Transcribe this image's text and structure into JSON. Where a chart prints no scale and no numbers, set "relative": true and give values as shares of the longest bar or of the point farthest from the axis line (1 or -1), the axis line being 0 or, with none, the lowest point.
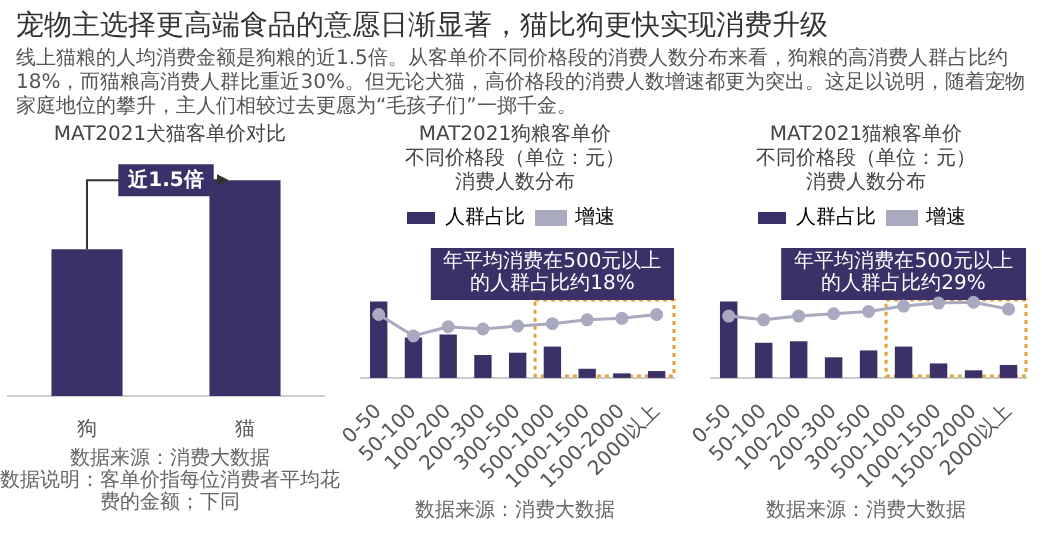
{
  "chart_data": [
    {
      "type": "other",
      "title": "宠物主选择更高端食品的意愿日渐显著，猫比狗更快实现消费升级",
      "subtitle": "线上猫粮的人均消费金额是狗粮的近1.5倍。从客单价不同价格段的消费人数分布来看，狗粮的高消费人群占比约18%，而猫粮高消费人群比重近30%。但无论犬猫，高价格段的消费人数增速都更为突出。这足以说明，随着宠物家庭地位的攀升，主人们相较过去更愿为“毛孩子们”一掷千金。"
    },
    {
      "type": "bar",
      "title": "MAT2021犬猫客单价对比",
      "categories": [
        "狗",
        "猫"
      ],
      "values": [
        0.68,
        1
      ],
      "color": "#3b3168",
      "relative": true,
      "annotations": [
        {
          "text": "近1.5倍",
          "x": "猫",
          "y": 1
        },
        "数据来源：消费大数据",
        "数据说明：客单价指每位消费者平均花费的金额；下同"
      ]
    },
    {
      "type": "bar",
      "title": "MAT2021狗粮客单价",
      "subtitle": "不同价格段（单位：元）消费人数分布",
      "legend": "top",
      "relative": true,
      "categories": [
        "0-50",
        "50-100",
        "100-200",
        "200-300",
        "300-500",
        "500-1000",
        "1000-1500",
        "1500-2000",
        "2000以上"
      ],
      "series": [
        {
          "name": "人群占比",
          "type": "bar",
          "color": "#3b3168",
          "values": [
            1,
            0.53,
            0.57,
            0.3,
            0.33,
            0.41,
            0.12,
            0.06,
            0.09
          ]
        },
        {
          "name": "增速",
          "type": "line",
          "color": "#a9a9c0",
          "marker": "circle",
          "values": [
            0.83,
            0.55,
            0.67,
            0.64,
            0.68,
            0.71,
            0.76,
            0.78,
            0.83
          ]
        }
      ],
      "annotations": [
        "年平均消费在500元以上的人群占比约18%",
        "数据来源：消费大数据"
      ]
    },
    {
      "type": "bar",
      "title": "MAT2021猫粮客单价",
      "subtitle": "不同价格段（单位：元）消费人数分布",
      "legend": "top",
      "relative": true,
      "categories": [
        "0-50",
        "50-100",
        "100-200",
        "200-300",
        "300-500",
        "500-1000",
        "1000-1500",
        "1500-2000",
        "2000以上"
      ],
      "series": [
        {
          "name": "人群占比",
          "type": "bar",
          "color": "#3b3168",
          "values": [
            1,
            0.46,
            0.48,
            0.27,
            0.36,
            0.41,
            0.19,
            0.1,
            0.17
          ]
        },
        {
          "name": "增速",
          "type": "line",
          "color": "#a9a9c0",
          "marker": "circle",
          "values": [
            0.81,
            0.76,
            0.81,
            0.84,
            0.87,
            0.94,
            0.98,
            0.99,
            0.9
          ]
        }
      ],
      "annotations": [
        "年平均消费在500元以上的人群占比约29%",
        "数据来源：消费大数据"
      ]
    }
  ]
}
